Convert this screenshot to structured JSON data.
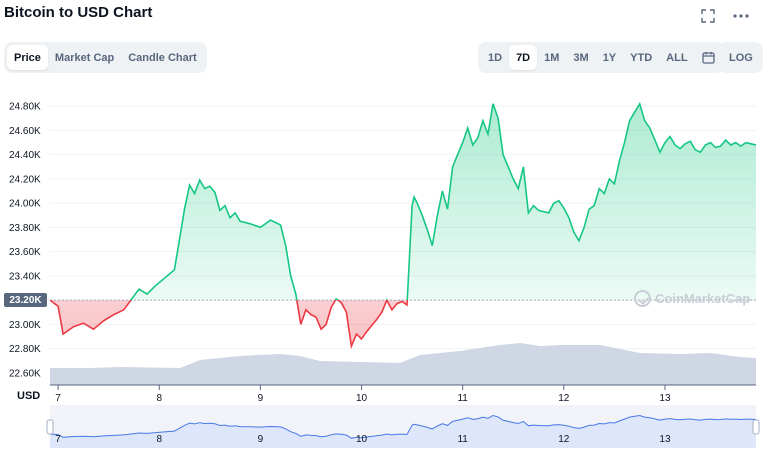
{
  "header": {
    "title": "Bitcoin to USD Chart",
    "fullscreen_icon": "expand-icon",
    "more_icon": "more-dots-icon"
  },
  "view_tabs": [
    {
      "label": "Price",
      "active": true
    },
    {
      "label": "Market Cap",
      "active": false
    },
    {
      "label": "Candle Chart",
      "active": false
    }
  ],
  "range_tabs": [
    {
      "label": "1D",
      "active": false
    },
    {
      "label": "7D",
      "active": true
    },
    {
      "label": "1M",
      "active": false
    },
    {
      "label": "3M",
      "active": false
    },
    {
      "label": "1Y",
      "active": false
    },
    {
      "label": "YTD",
      "active": false
    },
    {
      "label": "ALL",
      "active": false
    }
  ],
  "calendar_icon": "calendar-icon",
  "log_label": "LOG",
  "current_price_label": "23.20K",
  "usd_label": "USD",
  "watermark_text": "CoinMarketCap",
  "colors": {
    "up": "#16c784",
    "down": "#ea3943",
    "volume": "#cfd6e4",
    "navigator": "#4878e6",
    "navigator_fill": "#dde6fa"
  },
  "chart_data": {
    "type": "line",
    "xlabel": "",
    "ylabel": "USD",
    "ylim": [
      22500,
      24950
    ],
    "xlim": [
      6.92,
      13.9
    ],
    "baseline": 23200,
    "x_ticks": [
      "7",
      "8",
      "9",
      "10",
      "11",
      "12",
      "13"
    ],
    "y_ticks": [
      "24.80K",
      "24.60K",
      "24.40K",
      "24.20K",
      "24.00K",
      "23.80K",
      "23.60K",
      "23.40K",
      "23.20K",
      "23.00K",
      "22.80K",
      "22.60K"
    ],
    "grid": true,
    "series": [
      {
        "x": [
          6.92,
          7.0,
          7.05,
          7.15,
          7.25,
          7.35,
          7.45,
          7.55,
          7.65,
          7.72,
          7.8,
          7.88,
          7.95,
          8.05,
          8.15,
          8.2,
          8.25,
          8.3,
          8.35,
          8.4,
          8.45,
          8.5,
          8.55,
          8.6,
          8.65,
          8.7,
          8.75,
          8.8,
          8.9,
          9.0,
          9.1,
          9.2,
          9.25,
          9.3,
          9.35,
          9.4,
          9.45,
          9.5,
          9.55,
          9.6,
          9.65,
          9.7,
          9.75,
          9.8,
          9.85,
          9.9,
          9.95,
          10.0,
          10.05,
          10.1,
          10.15,
          10.2,
          10.25,
          10.3,
          10.35,
          10.4,
          10.45,
          10.5,
          10.52,
          10.55,
          10.6,
          10.65,
          10.7,
          10.75,
          10.8,
          10.85,
          10.9,
          10.95,
          11.0,
          11.05,
          11.1,
          11.15,
          11.2,
          11.25,
          11.3,
          11.35,
          11.4,
          11.45,
          11.5,
          11.55,
          11.6,
          11.65,
          11.7,
          11.75,
          11.8,
          11.85,
          11.9,
          11.95,
          12.0,
          12.05,
          12.1,
          12.15,
          12.2,
          12.25,
          12.3,
          12.35,
          12.4,
          12.45,
          12.5,
          12.55,
          12.6,
          12.65,
          12.7,
          12.75,
          12.8,
          12.85,
          12.9,
          12.95,
          13.0,
          13.05,
          13.1,
          13.15,
          13.2,
          13.25,
          13.3,
          13.35,
          13.4,
          13.45,
          13.5,
          13.55,
          13.6,
          13.65,
          13.7,
          13.75,
          13.8,
          13.85,
          13.9
        ],
        "values": [
          23200,
          23150,
          22920,
          22980,
          23010,
          22960,
          23030,
          23080,
          23120,
          23200,
          23290,
          23250,
          23310,
          23380,
          23450,
          23700,
          23950,
          24150,
          24080,
          24190,
          24120,
          24140,
          24090,
          23940,
          23980,
          23880,
          23920,
          23850,
          23830,
          23800,
          23860,
          23820,
          23650,
          23400,
          23250,
          23000,
          23120,
          23080,
          23060,
          22960,
          23000,
          23140,
          23210,
          23180,
          23100,
          22820,
          22920,
          22880,
          22940,
          22990,
          23040,
          23100,
          23200,
          23120,
          23170,
          23190,
          23160,
          23980,
          24050,
          24000,
          23900,
          23780,
          23650,
          23900,
          24100,
          23950,
          24300,
          24400,
          24500,
          24620,
          24480,
          24540,
          24680,
          24570,
          24820,
          24700,
          24400,
          24300,
          24200,
          24120,
          24300,
          23920,
          23980,
          23940,
          23930,
          23920,
          24000,
          24020,
          23960,
          23880,
          23760,
          23690,
          23800,
          23950,
          23980,
          24120,
          24080,
          24200,
          24160,
          24350,
          24500,
          24680,
          24750,
          24820,
          24680,
          24620,
          24520,
          24420,
          24500,
          24550,
          24480,
          24450,
          24490,
          24510,
          24440,
          24420,
          24480,
          24500,
          24460,
          24470,
          24520,
          24480,
          24500,
          24470,
          24500,
          24490,
          24480
        ]
      }
    ]
  }
}
